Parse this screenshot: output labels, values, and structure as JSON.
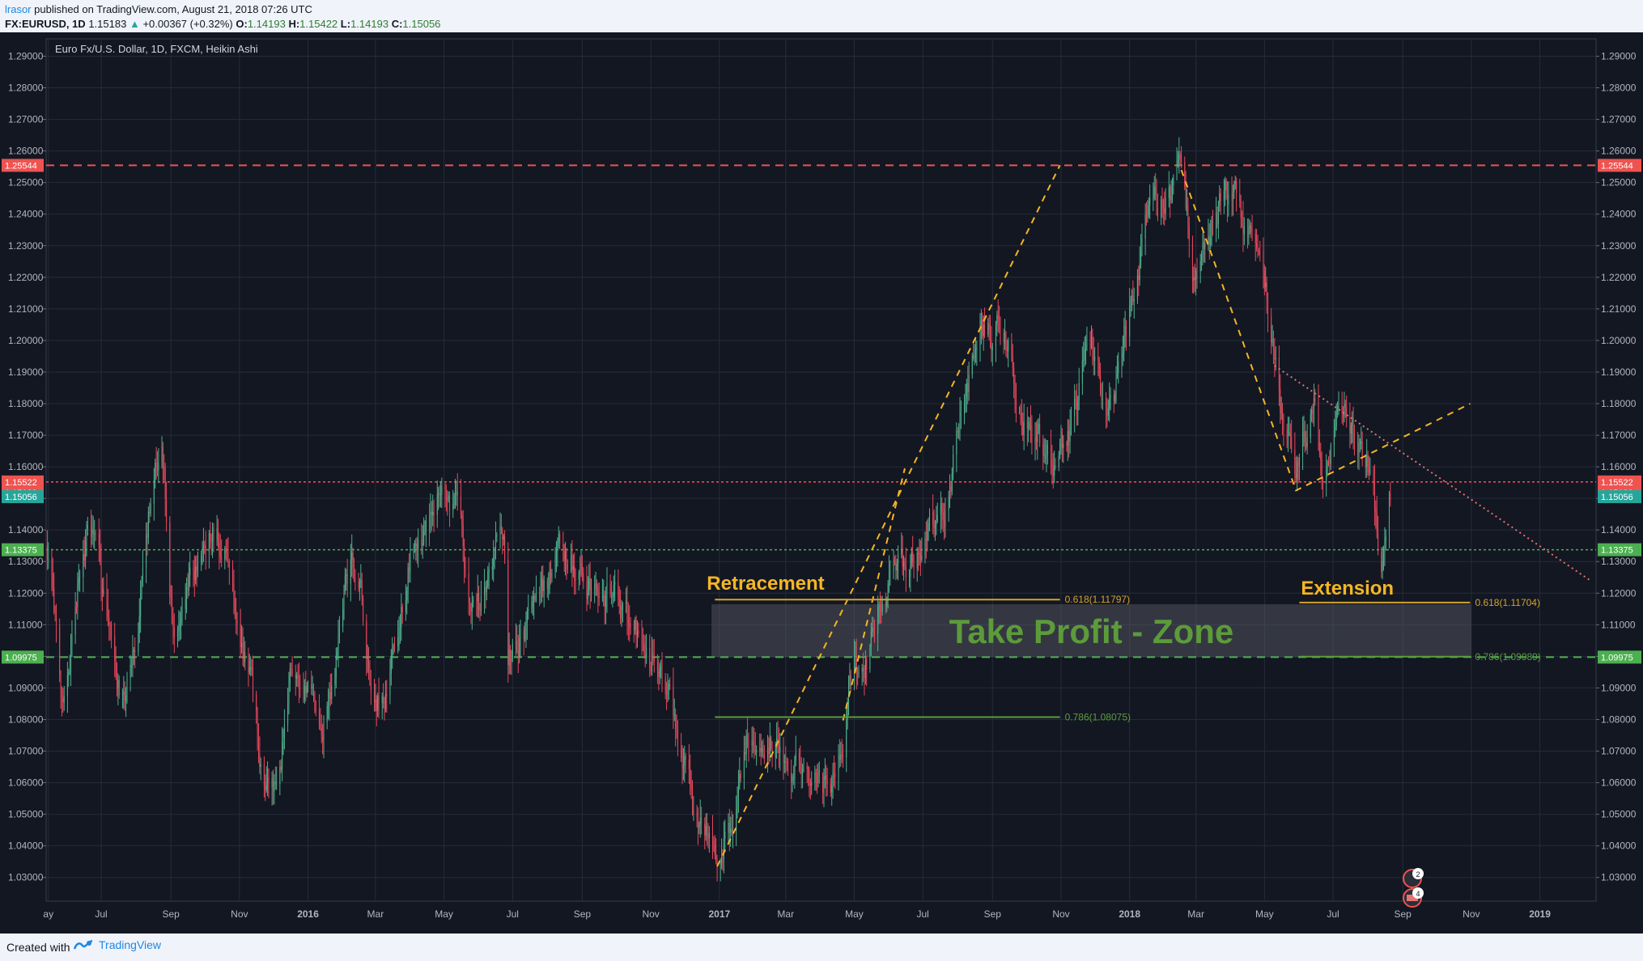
{
  "header": {
    "author": "lrasor",
    "published": " published on TradingView.com, August 21, 2018 07:26 UTC",
    "symbol": "FX:EURUSD, 1D",
    "last": "1.15183",
    "change": "+0.00367 (+0.32%)",
    "o_label": "O:",
    "o": "1.14193",
    "h_label": "H:",
    "h": "1.15422",
    "l_label": "L:",
    "l": "1.14193",
    "c_label": "C:",
    "c": "1.15056"
  },
  "footer": {
    "created": "Created with",
    "brand": "TradingView"
  },
  "chart_data": {
    "type": "candlestick",
    "title": "Euro Fx/U.S. Dollar, 1D, FXCM, Heikin Ashi",
    "ylim": [
      1.0225,
      1.2955
    ],
    "y_ticks": [
      "1.29000",
      "1.28000",
      "1.27000",
      "1.26000",
      "1.25000",
      "1.24000",
      "1.23000",
      "1.22000",
      "1.21000",
      "1.20000",
      "1.19000",
      "1.18000",
      "1.17000",
      "1.16000",
      "1.15000",
      "1.14000",
      "1.13000",
      "1.12000",
      "1.11000",
      "1.10000",
      "1.09000",
      "1.08000",
      "1.07000",
      "1.06000",
      "1.05000",
      "1.04000",
      "1.03000"
    ],
    "x_start": "2015-05-13",
    "x_end": "2019-02-20",
    "x_ticks": [
      {
        "label": "ay",
        "date": "2015-05-15",
        "bold": false
      },
      {
        "label": "Jul",
        "date": "2015-07-01",
        "bold": false
      },
      {
        "label": "Sep",
        "date": "2015-09-01",
        "bold": false
      },
      {
        "label": "Nov",
        "date": "2015-11-01",
        "bold": false
      },
      {
        "label": "2016",
        "date": "2016-01-01",
        "bold": true
      },
      {
        "label": "Mar",
        "date": "2016-03-01",
        "bold": false
      },
      {
        "label": "May",
        "date": "2016-05-01",
        "bold": false
      },
      {
        "label": "Jul",
        "date": "2016-07-01",
        "bold": false
      },
      {
        "label": "Sep",
        "date": "2016-09-01",
        "bold": false
      },
      {
        "label": "Nov",
        "date": "2016-11-01",
        "bold": false
      },
      {
        "label": "2017",
        "date": "2017-01-01",
        "bold": true
      },
      {
        "label": "Mar",
        "date": "2017-03-01",
        "bold": false
      },
      {
        "label": "May",
        "date": "2017-05-01",
        "bold": false
      },
      {
        "label": "Jul",
        "date": "2017-07-01",
        "bold": false
      },
      {
        "label": "Sep",
        "date": "2017-09-01",
        "bold": false
      },
      {
        "label": "Nov",
        "date": "2017-11-01",
        "bold": false
      },
      {
        "label": "2018",
        "date": "2018-01-01",
        "bold": true
      },
      {
        "label": "Mar",
        "date": "2018-03-01",
        "bold": false
      },
      {
        "label": "May",
        "date": "2018-05-01",
        "bold": false
      },
      {
        "label": "Jul",
        "date": "2018-07-01",
        "bold": false
      },
      {
        "label": "Sep",
        "date": "2018-09-01",
        "bold": false
      },
      {
        "label": "Nov",
        "date": "2018-11-01",
        "bold": false
      },
      {
        "label": "2019",
        "date": "2019-01-01",
        "bold": true
      }
    ],
    "price_path": [
      [
        "2015-05-13",
        1.135
      ],
      [
        "2015-05-28",
        1.092
      ],
      [
        "2015-06-18",
        1.138
      ],
      [
        "2015-07-20",
        1.088
      ],
      [
        "2015-08-24",
        1.165
      ],
      [
        "2015-09-03",
        1.113
      ],
      [
        "2015-10-15",
        1.14
      ],
      [
        "2015-11-30",
        1.058
      ],
      [
        "2015-12-20",
        1.095
      ],
      [
        "2016-01-15",
        1.083
      ],
      [
        "2016-02-11",
        1.13
      ],
      [
        "2016-03-01",
        1.088
      ],
      [
        "2016-04-12",
        1.14
      ],
      [
        "2016-05-03",
        1.153
      ],
      [
        "2016-05-31",
        1.115
      ],
      [
        "2016-06-23",
        1.138
      ],
      [
        "2016-06-27",
        1.1
      ],
      [
        "2016-08-18",
        1.132
      ],
      [
        "2016-09-15",
        1.12
      ],
      [
        "2016-11-08",
        1.1
      ],
      [
        "2016-12-20",
        1.04
      ],
      [
        "2017-01-03",
        1.042
      ],
      [
        "2017-02-01",
        1.078
      ],
      [
        "2017-03-20",
        1.068
      ],
      [
        "2017-04-10",
        1.06
      ],
      [
        "2017-05-05",
        1.095
      ],
      [
        "2017-06-01",
        1.122
      ],
      [
        "2017-07-10",
        1.142
      ],
      [
        "2017-08-29",
        1.2
      ],
      [
        "2017-09-08",
        1.205
      ],
      [
        "2017-10-06",
        1.17
      ],
      [
        "2017-10-27",
        1.16
      ],
      [
        "2017-11-27",
        1.193
      ],
      [
        "2017-12-12",
        1.178
      ],
      [
        "2018-01-25",
        1.245
      ],
      [
        "2018-02-16",
        1.25
      ],
      [
        "2018-03-01",
        1.22
      ],
      [
        "2018-03-27",
        1.245
      ],
      [
        "2018-04-17",
        1.237
      ],
      [
        "2018-05-29",
        1.158
      ],
      [
        "2018-06-14",
        1.178
      ],
      [
        "2018-06-21",
        1.155
      ],
      [
        "2018-07-09",
        1.175
      ],
      [
        "2018-07-27",
        1.165
      ],
      [
        "2018-08-15",
        1.133
      ],
      [
        "2018-08-21",
        1.148
      ]
    ],
    "hlines": [
      {
        "price": 1.25544,
        "label": "1.25544",
        "color": "#ef5350",
        "style": "dashed",
        "width": 2
      },
      {
        "price": 1.15522,
        "label": "1.15522",
        "color": "#ef5350",
        "style": "dotted",
        "width": 1.5
      },
      {
        "price": 1.13375,
        "label": "1.13375",
        "color": "#4caf50",
        "style": "dotted",
        "width": 1.5
      },
      {
        "price": 1.09975,
        "label": "1.09975",
        "color": "#4caf50",
        "style": "dashed",
        "width": 2
      }
    ],
    "price_labels": [
      {
        "price": 1.15183,
        "label": "1.15183",
        "color": "#ef5350"
      },
      {
        "price": 1.15056,
        "label": "1.15056",
        "color": "#26a69a"
      }
    ],
    "annotations": {
      "retracement_label": "Retracement",
      "extension_label": "Extension",
      "zone_label": "Take Profit - Zone",
      "fib_levels": [
        {
          "name": "ret-618",
          "text": "0.618(1.11797)",
          "price": 1.11797,
          "from": "2016-12-28",
          "to": "2017-10-31",
          "color": "#d4a32f"
        },
        {
          "name": "ret-786",
          "text": "0.786(1.08075)",
          "price": 1.08075,
          "from": "2016-12-28",
          "to": "2017-10-31",
          "color": "#5a9e3c"
        },
        {
          "name": "ext-618",
          "text": "0.618(1.11704)",
          "price": 1.11704,
          "from": "2018-06-01",
          "to": "2018-10-31",
          "color": "#d4a32f"
        },
        {
          "name": "ext-786",
          "text": "0.786(1.09989)",
          "price": 1.09989,
          "from": "2018-06-01",
          "to": "2018-10-31",
          "color": "#5a9e3c"
        }
      ],
      "zone": {
        "top": 1.1165,
        "bottom": 1.0997,
        "from": "2016-12-25",
        "to": "2018-11-01"
      },
      "trendlines": [
        {
          "name": "rally-trend-1",
          "points": [
            [
              "2016-12-30",
              1.0335
            ],
            [
              "2017-10-31",
              1.2555
            ]
          ],
          "color": "#f5b623",
          "dash": "8,7"
        },
        {
          "name": "rally-trend-2",
          "points": [
            [
              "2017-04-21",
              1.0797
            ],
            [
              "2017-06-15",
              1.1595
            ]
          ],
          "color": "#f5b623",
          "dash": "8,7"
        },
        {
          "name": "decline-trend",
          "points": [
            [
              "2018-02-16",
              1.254
            ],
            [
              "2018-05-29",
              1.1525
            ],
            [
              "2018-10-31",
              1.18
            ]
          ],
          "color": "#f5b623",
          "dash": "8,7"
        },
        {
          "name": "resistance-trend",
          "points": [
            [
              "2018-05-10",
              1.192
            ],
            [
              "2019-02-15",
              1.124
            ]
          ],
          "color": "#e57373",
          "dash": "2,4"
        }
      ]
    },
    "event_badges": [
      "2",
      "4"
    ]
  }
}
